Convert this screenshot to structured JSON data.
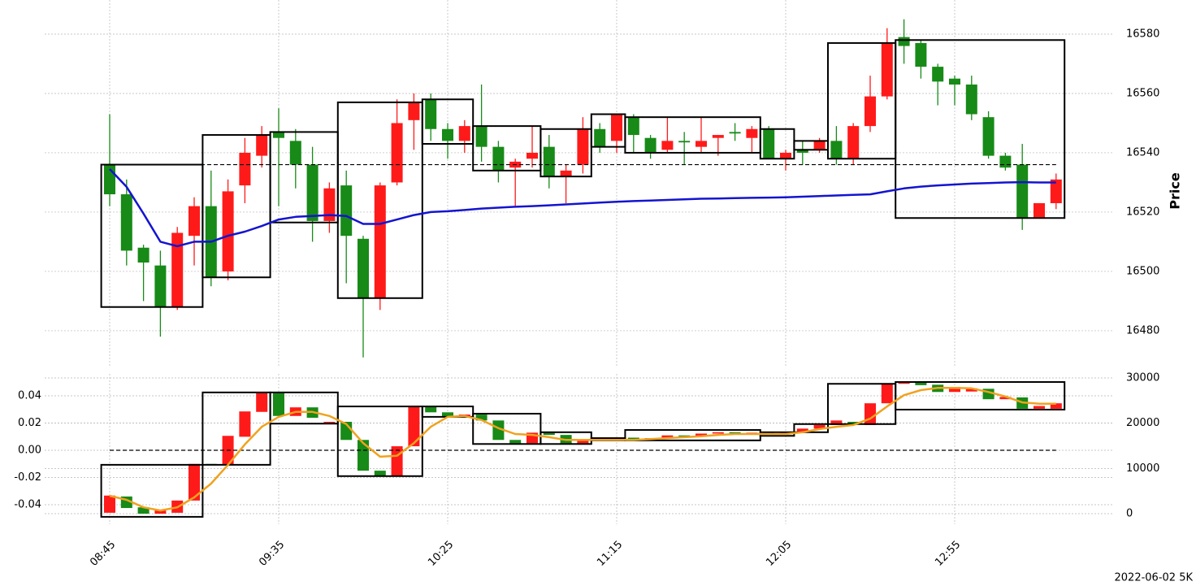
{
  "chart_data": [
    {
      "type": "candlestick",
      "y_label": "Price",
      "annotation": "2022-06-02 5K",
      "categories": [
        "08:45",
        null,
        null,
        null,
        null,
        null,
        null,
        null,
        null,
        null,
        "09:35",
        null,
        null,
        null,
        null,
        null,
        null,
        null,
        null,
        null,
        "10:25",
        null,
        null,
        null,
        null,
        null,
        null,
        null,
        null,
        null,
        "11:15",
        null,
        null,
        null,
        null,
        null,
        null,
        null,
        null,
        null,
        "12:05",
        null,
        null,
        null,
        null,
        null,
        null,
        null,
        null,
        null,
        "12:55",
        null,
        null,
        null,
        null,
        null,
        null
      ],
      "open": [
        16536,
        16526,
        16508,
        16502,
        16488,
        16512,
        16522,
        16500,
        16529,
        16539,
        16547,
        16544,
        16536,
        16517,
        16529,
        16511,
        16491,
        16530,
        16551,
        16558,
        16548,
        16544,
        16549,
        16542,
        16535,
        16538,
        16542,
        16532,
        16536,
        16548,
        16544,
        16552,
        16545,
        16541,
        16544,
        16542,
        16545,
        16547,
        16545,
        16548,
        16538,
        16541,
        16541,
        16544,
        16538,
        16549,
        16559,
        16579,
        16577,
        16569,
        16565,
        16563,
        16552,
        16539,
        16536,
        16518,
        16523
      ],
      "high": [
        16553,
        16531,
        16509,
        16507,
        16515,
        16525,
        16534,
        16531,
        16545,
        16549,
        16555,
        16548,
        16542,
        16530,
        16534,
        16512,
        16530,
        16558,
        16560,
        16560,
        16550,
        16551,
        16563,
        16544,
        16538,
        16549,
        16546,
        16536,
        16552,
        16550,
        16553,
        16553,
        16546,
        16552,
        16547,
        16552,
        16546,
        16550,
        16549,
        16549,
        16541,
        16544,
        16545,
        16549,
        16550,
        16566,
        16582,
        16585,
        16578,
        16570,
        16566,
        16566,
        16554,
        16540,
        16543,
        16523,
        16533
      ],
      "low": [
        16522,
        16502,
        16490,
        16478,
        16487,
        16502,
        16495,
        16497,
        16523,
        16535,
        16522,
        16528,
        16510,
        16513,
        16496,
        16471,
        16487,
        16529,
        16541,
        16544,
        16538,
        16540,
        16537,
        16530,
        16522,
        16535,
        16528,
        16523,
        16533,
        16540,
        16540,
        16540,
        16538,
        16540,
        16536,
        16540,
        16539,
        16544,
        16540,
        16538,
        16534,
        16536,
        16540,
        16536,
        16536,
        16547,
        16558,
        16570,
        16565,
        16556,
        16556,
        16551,
        16538,
        16534,
        16514,
        16518,
        16521
      ],
      "close": [
        16526,
        16507,
        16503,
        16488,
        16513,
        16522,
        16498,
        16527,
        16540,
        16546,
        16545,
        16536,
        16517,
        16528,
        16512,
        16491,
        16529,
        16550,
        16557,
        16548,
        16544,
        16549,
        16542,
        16534,
        16537,
        16540,
        16532,
        16534,
        16548,
        16542,
        16553,
        16546,
        16540,
        16544,
        16543.5,
        16544,
        16546,
        16546.5,
        16548,
        16538,
        16540,
        16540,
        16544,
        16538,
        16549,
        16559,
        16577,
        16576,
        16569,
        16564,
        16563,
        16553,
        16539,
        16535,
        16518,
        16523,
        16531
      ],
      "up_color": "#ff1a1a",
      "down_color": "#178a17",
      "lines": [
        {
          "color": "#1414d0",
          "values": [
            16534.5,
            16528.5,
            16519.5,
            16510,
            16508.5,
            16510,
            16510,
            16512,
            16513.4,
            16515.3,
            16517.5,
            16518.4,
            16518.7,
            16519,
            16518.7,
            16516,
            16516,
            16517.5,
            16519,
            16520,
            16520.3,
            16520.7,
            16521.2,
            16521.5,
            16521.8,
            16522,
            16522.3,
            16522.6,
            16522.9,
            16523.2,
            16523.5,
            16523.7,
            16523.9,
            16524.1,
            16524.3,
            16524.5,
            16524.6,
            16524.7,
            16524.8,
            16524.9,
            16525,
            16525.2,
            16525.4,
            16525.6,
            16525.8,
            16526,
            16527,
            16528,
            16528.6,
            16529,
            16529.3,
            16529.6,
            16529.8,
            16530,
            16530.1,
            16530,
            16530
          ]
        }
      ],
      "boxes": [
        {
          "start": 0,
          "end": 5,
          "top": 16536,
          "bottom": 16488
        },
        {
          "start": 6,
          "end": 9,
          "top": 16546,
          "bottom": 16498
        },
        {
          "start": 10,
          "end": 13,
          "top": 16547,
          "bottom": 16516.5
        },
        {
          "start": 14,
          "end": 18,
          "top": 16557,
          "bottom": 16491
        },
        {
          "start": 19,
          "end": 21,
          "top": 16558,
          "bottom": 16543
        },
        {
          "start": 22,
          "end": 25,
          "top": 16549,
          "bottom": 16534
        },
        {
          "start": 26,
          "end": 28,
          "top": 16548,
          "bottom": 16532
        },
        {
          "start": 29,
          "end": 30,
          "top": 16553,
          "bottom": 16542
        },
        {
          "start": 31,
          "end": 38,
          "top": 16552,
          "bottom": 16540
        },
        {
          "start": 39,
          "end": 40,
          "top": 16548,
          "bottom": 16538
        },
        {
          "start": 41,
          "end": 42,
          "top": 16544,
          "bottom": 16541
        },
        {
          "start": 43,
          "end": 46,
          "top": 16577,
          "bottom": 16538
        },
        {
          "start": 47,
          "end": 56,
          "top": 16578,
          "bottom": 16518
        }
      ],
      "ref_line": 16536,
      "ylim": [
        16468.2,
        16591.5
      ],
      "yticks": [
        16480,
        16500,
        16520,
        16540,
        16560,
        16580
      ],
      "grid": true
    },
    {
      "type": "candlestick",
      "candle_axis": "y2",
      "open": [
        200,
        3800,
        1400,
        0,
        200,
        2900,
        11000,
        10800,
        17000,
        22500,
        26800,
        21600,
        23500,
        19900,
        20300,
        16300,
        9500,
        8400,
        14900,
        23700,
        22400,
        21400,
        21900,
        20600,
        16300,
        15400,
        17900,
        17400,
        15400,
        16300,
        16500,
        16800,
        16500,
        16700,
        17300,
        17100,
        17700,
        18000,
        17800,
        17900,
        17600,
        17900,
        18800,
        19600,
        20300,
        19600,
        24400,
        28700,
        29100,
        28500,
        26900,
        27000,
        27600,
        25300,
        25700,
        23200,
        23200
      ],
      "close": [
        4000,
        1250,
        0,
        700,
        2900,
        11000,
        10800,
        17200,
        22600,
        26800,
        21600,
        23500,
        21200,
        20300,
        16300,
        9500,
        8300,
        14900,
        23700,
        22400,
        21400,
        21900,
        20600,
        16300,
        15400,
        17900,
        17400,
        15400,
        16300,
        16500,
        16800,
        16500,
        16700,
        17300,
        17100,
        17700,
        18000,
        17800,
        17900,
        17600,
        17900,
        18800,
        19600,
        20600,
        19800,
        24400,
        28700,
        29100,
        28400,
        26900,
        28000,
        27700,
        25300,
        25800,
        23200,
        23800,
        24400
      ],
      "up_color": "#ff1a1a",
      "down_color": "#178a17",
      "lines": [
        {
          "color": "#f0a21e",
          "axis": "y2",
          "values": [
            3950,
            3050,
            1400,
            700,
            1400,
            3600,
            6650,
            10800,
            15300,
            19200,
            21400,
            22500,
            22500,
            21600,
            19800,
            15600,
            12600,
            12800,
            15600,
            19200,
            21400,
            21600,
            20700,
            18900,
            17600,
            17400,
            16900,
            16300,
            16300,
            16300,
            16300,
            16300,
            16500,
            16700,
            16900,
            17100,
            17400,
            17600,
            17600,
            17600,
            17600,
            18000,
            18700,
            19200,
            19600,
            21000,
            23700,
            26200,
            27300,
            27800,
            27800,
            27700,
            26900,
            25900,
            24600,
            24300,
            24300
          ]
        }
      ],
      "boxes": [
        {
          "start": 0,
          "end": 5,
          "top": 10800,
          "bottom": -700
        },
        {
          "start": 6,
          "end": 9,
          "top": 26800,
          "bottom": 10800
        },
        {
          "start": 10,
          "end": 13,
          "top": 26800,
          "bottom": 19900
        },
        {
          "start": 14,
          "end": 18,
          "top": 23700,
          "bottom": 8300
        },
        {
          "start": 19,
          "end": 21,
          "top": 23700,
          "bottom": 21400
        },
        {
          "start": 22,
          "end": 25,
          "top": 22100,
          "bottom": 15400
        },
        {
          "start": 26,
          "end": 28,
          "top": 18000,
          "bottom": 15400
        },
        {
          "start": 29,
          "end": 30,
          "top": 16700,
          "bottom": 16200
        },
        {
          "start": 31,
          "end": 38,
          "top": 18500,
          "bottom": 16200
        },
        {
          "start": 39,
          "end": 40,
          "top": 18000,
          "bottom": 17200
        },
        {
          "start": 41,
          "end": 42,
          "top": 19800,
          "bottom": 18000
        },
        {
          "start": 43,
          "end": 46,
          "top": 28700,
          "bottom": 19800
        },
        {
          "start": 47,
          "end": 56,
          "top": 29100,
          "bottom": 23000
        }
      ],
      "boxes_axis": "y2",
      "ref_line": 0,
      "ylim": [
        -0.0543,
        0.0561
      ],
      "yticks": [
        -0.04,
        -0.02,
        {
          "value": 0,
          "label": "0.00"
        },
        0.02,
        0.04
      ],
      "y2lim": [
        -2335,
        30900
      ],
      "y2ticks": [
        0,
        10000,
        20000,
        30000
      ],
      "grid": true
    }
  ]
}
